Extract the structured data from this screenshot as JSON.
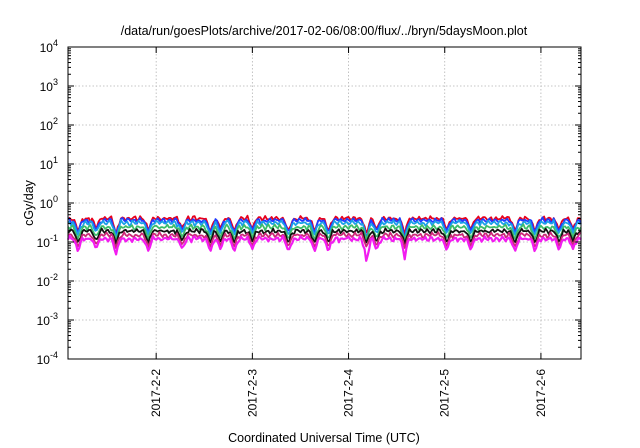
{
  "chart_data": {
    "type": "line",
    "title": "/data/run/goesPlots/archive/2017-02-06/08:00/flux/../bryn/5daysMoon.plot",
    "xlabel": "Coordinated Universal Time (UTC)",
    "ylabel": "cGy/day",
    "yscale": "log",
    "ylim": [
      0.0001,
      10000
    ],
    "xlim": [
      "2017-02-01 02:00",
      "2017-02-06 10:00"
    ],
    "grid": true,
    "legend": "none",
    "x_ticks": [
      "2017-2-2",
      "2017-2-3",
      "2017-2-4",
      "2017-2-5",
      "2017-2-6"
    ],
    "y_ticks": [
      {
        "value": 0.0001,
        "base": "10",
        "exp": "-4"
      },
      {
        "value": 0.001,
        "base": "10",
        "exp": "-3"
      },
      {
        "value": 0.01,
        "base": "10",
        "exp": "-2"
      },
      {
        "value": 0.1,
        "base": "10",
        "exp": "-1"
      },
      {
        "value": 1,
        "base": "10",
        "exp": "0"
      },
      {
        "value": 10,
        "base": "10",
        "exp": "1"
      },
      {
        "value": 100,
        "base": "10",
        "exp": "2"
      },
      {
        "value": 1000,
        "base": "10",
        "exp": "3"
      },
      {
        "value": 10000,
        "base": "10",
        "exp": "4"
      }
    ],
    "series": [
      {
        "color": "#e8001c",
        "baseline": 0.4,
        "min_dip": 0.15
      },
      {
        "color": "#1f3cff",
        "baseline": 0.36,
        "min_dip": 0.11
      },
      {
        "color": "#1aa0e8",
        "baseline": 0.31,
        "min_dip": 0.1
      },
      {
        "color": "#3dbd6a",
        "baseline": 0.24,
        "min_dip": 0.11
      },
      {
        "color": "#111111",
        "baseline": 0.19,
        "min_dip": 0.09
      },
      {
        "color": "#cc2a78",
        "baseline": 0.15,
        "min_dip": 0.07
      },
      {
        "color": "#f21cf0",
        "baseline": 0.12,
        "min_dip": 0.024
      }
    ],
    "dips": [
      {
        "time": "2017-02-01 04:30",
        "depth": 0.45
      },
      {
        "time": "2017-02-01 09:00",
        "depth": 0.55
      },
      {
        "time": "2017-02-01 14:00",
        "depth": 0.4
      },
      {
        "time": "2017-02-01 22:00",
        "depth": 0.5
      },
      {
        "time": "2017-02-02 06:30",
        "depth": 0.55
      },
      {
        "time": "2017-02-02 13:30",
        "depth": 0.45
      },
      {
        "time": "2017-02-02 16:00",
        "depth": 0.55
      },
      {
        "time": "2017-02-02 19:30",
        "depth": 0.45
      },
      {
        "time": "2017-02-03 00:00",
        "depth": 0.55
      },
      {
        "time": "2017-02-03 09:00",
        "depth": 0.45
      },
      {
        "time": "2017-02-03 15:30",
        "depth": 0.45
      },
      {
        "time": "2017-02-03 19:00",
        "depth": 0.45
      },
      {
        "time": "2017-02-04 04:30",
        "depth": 0.2
      },
      {
        "time": "2017-02-04 07:00",
        "depth": 0.5
      },
      {
        "time": "2017-02-04 14:00",
        "depth": 0.3
      },
      {
        "time": "2017-02-05 00:30",
        "depth": 0.5
      },
      {
        "time": "2017-02-05 06:30",
        "depth": 0.5
      },
      {
        "time": "2017-02-05 17:30",
        "depth": 0.45
      },
      {
        "time": "2017-02-05 22:30",
        "depth": 0.45
      },
      {
        "time": "2017-02-06 04:30",
        "depth": 0.5
      },
      {
        "time": "2017-02-06 08:00",
        "depth": 0.55
      }
    ]
  }
}
